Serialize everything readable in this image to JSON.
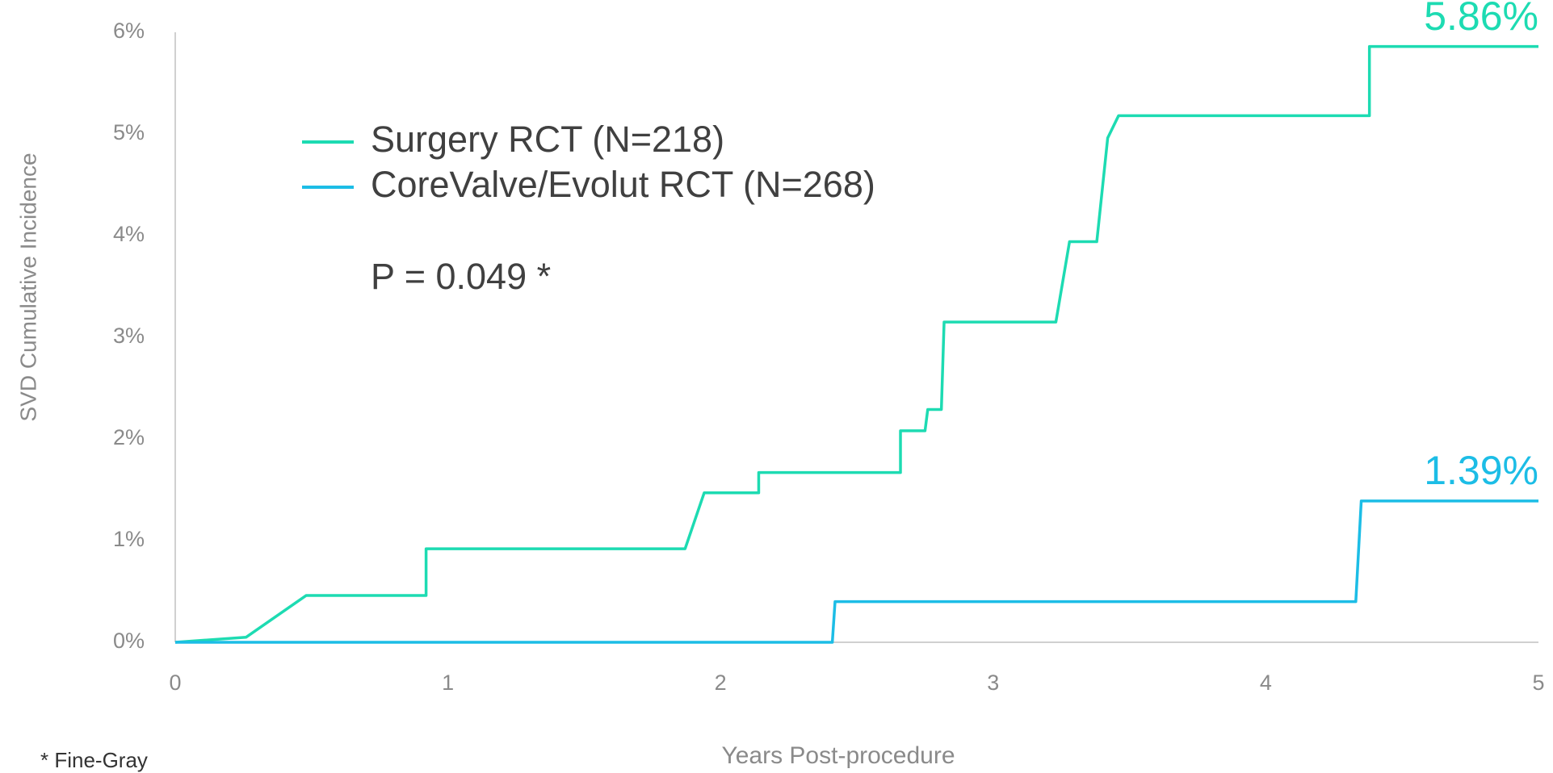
{
  "chart_data": {
    "type": "line",
    "y_label": "SVD Cumulative Incidence",
    "x_label": "Years Post-procedure",
    "annotation": "P = 0.049 *",
    "footnote": "* Fine-Gray",
    "xlim": [
      0,
      5
    ],
    "xticks": [
      0,
      1,
      2,
      3,
      4,
      5
    ],
    "ylim": [
      0,
      6
    ],
    "yticks": [
      {
        "value": 0,
        "label": "0%"
      },
      {
        "value": 1,
        "label": "1%"
      },
      {
        "value": 2,
        "label": "2%"
      },
      {
        "value": 3,
        "label": "3%"
      },
      {
        "value": 4,
        "label": "4%"
      },
      {
        "value": 5,
        "label": "5%"
      },
      {
        "value": 6,
        "label": "6%"
      }
    ],
    "grid": false,
    "series": [
      {
        "name": "Surgery RCT (N=218)",
        "color": "#1ddbb2",
        "x": [
          0,
          0.26,
          0.48,
          0.92,
          0.92,
          1.87,
          1.94,
          2.14,
          2.14,
          2.66,
          2.66,
          2.75,
          2.76,
          2.81,
          2.82,
          3.23,
          3.28,
          3.38,
          3.42,
          3.46,
          4.38,
          4.38,
          5
        ],
        "values": [
          0,
          0.05,
          0.46,
          0.46,
          0.92,
          0.92,
          1.47,
          1.47,
          1.67,
          1.67,
          2.08,
          2.08,
          2.29,
          2.29,
          3.15,
          3.15,
          3.94,
          3.94,
          4.96,
          5.18,
          5.18,
          5.86,
          5.86
        ],
        "value_labels": [
          null,
          null,
          null,
          null,
          null,
          null,
          null,
          null,
          null,
          null,
          null,
          null,
          null,
          null,
          null,
          null,
          null,
          null,
          null,
          null,
          null,
          null,
          "5.86%"
        ]
      },
      {
        "name": "CoreValve/Evolut RCT (N=268)",
        "color": "#1cbde6",
        "x": [
          0,
          2.41,
          2.42,
          4.33,
          4.35,
          5
        ],
        "values": [
          0,
          0,
          0.4,
          0.4,
          1.39,
          1.39
        ],
        "value_labels": [
          null,
          null,
          null,
          null,
          null,
          "1.39%"
        ]
      }
    ]
  }
}
